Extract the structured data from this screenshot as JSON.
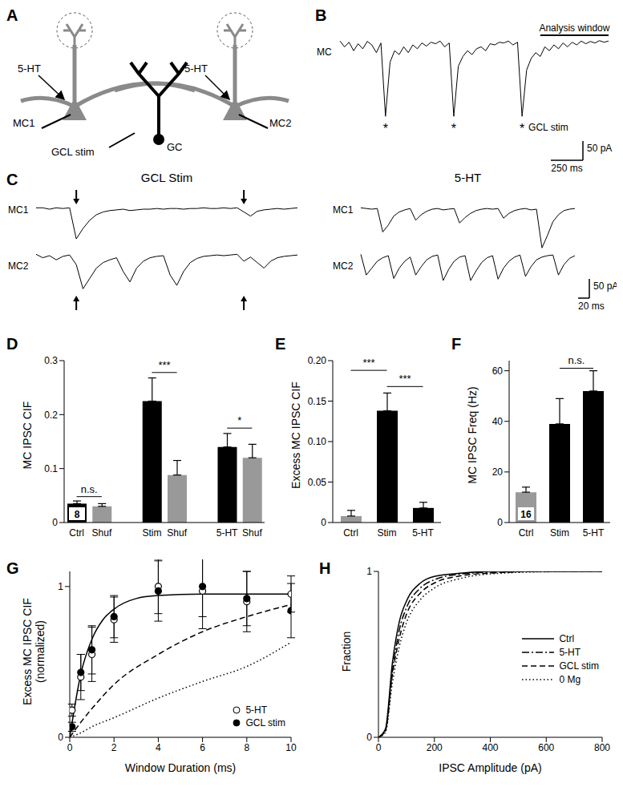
{
  "panels": [
    "A",
    "B",
    "C",
    "D",
    "E",
    "F",
    "G",
    "H"
  ],
  "diagram": {
    "panel": "A",
    "drug": "5-HT",
    "mitral_cells": [
      "MC1",
      "MC2"
    ],
    "stimulus": "GCL stim",
    "granule_cell": "GC"
  },
  "chart_data": [
    {
      "panel": "B",
      "type": "line",
      "label": "MC",
      "values": [
        -5,
        -20,
        -8,
        -30,
        -12,
        -25,
        -6,
        -15,
        -35,
        -10,
        -200,
        -60,
        -30,
        -40,
        -20,
        -35,
        -15,
        -25,
        -10,
        -18,
        -8,
        -12,
        -5,
        -20,
        -10,
        -200,
        -70,
        -45,
        -30,
        -40,
        -25,
        -20,
        -30,
        -12,
        -15,
        -8,
        -10,
        -5,
        -15,
        -8,
        -200,
        -80,
        -50,
        -35,
        -45,
        -20,
        -30,
        -15,
        -25,
        -10,
        -20,
        -8,
        -15,
        -5,
        -12,
        -6,
        -10,
        -4,
        -8,
        -5
      ],
      "ylim": [
        -210,
        10
      ],
      "tick_labels": false,
      "annotations": [
        "Analysis window",
        "*",
        "GCL stim"
      ],
      "scale_bars": [
        "50 pA",
        "250 ms"
      ]
    },
    {
      "panel": "C",
      "type": "line",
      "title": "GCL Stim",
      "ylim": [
        -60,
        5
      ],
      "tick_labels": false,
      "series": [
        {
          "name": "MC1",
          "values": [
            0,
            0,
            -2,
            0,
            -1,
            0,
            -45,
            -30,
            -18,
            -10,
            -6,
            -4,
            -3,
            -2,
            -4,
            -3,
            -2,
            -2,
            -1,
            -2,
            -1,
            -1,
            -2,
            -1,
            -1,
            0,
            -1,
            -1,
            0,
            -1,
            0,
            -6,
            -12,
            -5,
            -3,
            -2,
            -1,
            -2,
            -1,
            0
          ]
        },
        {
          "name": "MC2",
          "values": [
            0,
            -5,
            -2,
            -8,
            -3,
            -1,
            -15,
            -50,
            -35,
            -20,
            -12,
            -8,
            -5,
            -25,
            -40,
            -20,
            -10,
            -5,
            -3,
            -2,
            -30,
            -45,
            -25,
            -12,
            -6,
            -3,
            -2,
            -1,
            -2,
            -1,
            0,
            -10,
            -4,
            -12,
            -20,
            -10,
            -5,
            -3,
            -2,
            -1
          ]
        }
      ]
    },
    {
      "type": "line",
      "title": "5-HT",
      "ylim": [
        -60,
        5
      ],
      "tick_labels": false,
      "scale_bars": [
        "50 pA",
        "20 ms"
      ],
      "series": [
        {
          "name": "MC1",
          "values": [
            0,
            -1,
            -2,
            -1,
            -35,
            -25,
            -12,
            -6,
            -3,
            -1,
            -18,
            -10,
            -5,
            -2,
            -1,
            -3,
            -2,
            -1,
            -22,
            -14,
            -8,
            -4,
            -2,
            -1,
            -2,
            -1,
            -15,
            -8,
            -4,
            -2,
            -1,
            -3,
            -2,
            -58,
            -40,
            -20,
            -10,
            -4,
            -2,
            -1
          ]
        },
        {
          "name": "MC2",
          "values": [
            0,
            -30,
            -20,
            -10,
            -5,
            -2,
            -35,
            -20,
            -10,
            -4,
            -30,
            -18,
            -8,
            -3,
            -1,
            -38,
            -22,
            -10,
            -4,
            -2,
            -38,
            -24,
            -12,
            -5,
            -2,
            -36,
            -20,
            -10,
            -4,
            -1,
            -32,
            -18,
            -8,
            -4,
            -2,
            -1,
            -30,
            -15,
            -6,
            -2
          ]
        }
      ]
    },
    {
      "panel": "D",
      "type": "bar",
      "ylabel": "MC IPSC CIF",
      "categories": [
        "Ctrl",
        "Shuf",
        null,
        "Stim",
        "Shuf",
        null,
        "5-HT",
        "Shuf"
      ],
      "values": [
        0.035,
        0.03,
        null,
        0.225,
        0.088,
        null,
        0.14,
        0.12
      ],
      "errors": [
        0.005,
        0.005,
        null,
        0.043,
        0.027,
        null,
        0.025,
        0.025
      ],
      "colors": [
        "#000000",
        "#999999",
        null,
        "#000000",
        "#999999",
        null,
        "#000000",
        "#999999"
      ],
      "n": [
        8,
        null,
        null,
        null,
        null,
        null,
        null,
        null
      ],
      "ylim": [
        0,
        0.3
      ],
      "yticks": [
        0,
        0.1,
        0.2,
        0.3
      ],
      "annotations": [
        "n.s.",
        "***",
        "*"
      ]
    },
    {
      "panel": "E",
      "type": "bar",
      "ylabel": "Excess MC IPSC CIF",
      "categories": [
        "Ctrl",
        "Stim",
        "5-HT"
      ],
      "values": [
        0.008,
        0.138,
        0.018
      ],
      "errors": [
        0.007,
        0.022,
        0.007
      ],
      "colors": [
        "#999999",
        "#000000",
        "#000000"
      ],
      "ylim": [
        0,
        0.2
      ],
      "yticks": [
        0,
        0.05,
        {
          "value": 0.1,
          "label": "0.10"
        },
        0.15,
        {
          "value": 0.2,
          "label": "0.20"
        }
      ],
      "annotations": [
        "***",
        "***"
      ]
    },
    {
      "panel": "F",
      "type": "bar",
      "ylabel": "MC IPSC Freq (Hz)",
      "categories": [
        "Ctrl",
        "Stim",
        "5-HT"
      ],
      "values": [
        12,
        39,
        52
      ],
      "errors": [
        2,
        10,
        8
      ],
      "colors": [
        "#999999",
        "#000000",
        "#000000"
      ],
      "n": [
        16,
        null,
        null
      ],
      "ylim": [
        0,
        64
      ],
      "yticks": [
        0,
        20,
        40,
        60
      ],
      "annotations": [
        "n.s."
      ]
    },
    {
      "panel": "G",
      "type": "scatter",
      "xlabel": "Window Duration (ms)",
      "ylabel": "Excess MC IPSC CIF\n(normalized)",
      "xlim": [
        0,
        10
      ],
      "xticks": [
        0,
        2,
        4,
        6,
        8,
        10
      ],
      "ylim": [
        0,
        1.1
      ],
      "yticks": [
        0,
        1
      ],
      "legend": "lower right",
      "series": [
        {
          "name": "5-HT",
          "marker": "open_circle",
          "x": [
            0.1,
            0.5,
            1,
            2,
            4,
            6,
            8,
            10
          ],
          "values": [
            0.18,
            0.4,
            0.55,
            0.78,
            1.0,
            0.97,
            0.9,
            0.95
          ],
          "errors": [
            0.04,
            0.15,
            0.18,
            0.15,
            0.18,
            0.25,
            0.2,
            0.12
          ]
        },
        {
          "name": "GCL stim",
          "marker": "filled_circle",
          "x": [
            0.1,
            0.5,
            1,
            2,
            4,
            6,
            8,
            10
          ],
          "values": [
            0.07,
            0.43,
            0.58,
            0.8,
            0.97,
            1.0,
            0.92,
            0.84
          ],
          "errors": [
            0.03,
            0.12,
            0.16,
            0.14,
            0.2,
            0.2,
            0.18,
            0.18
          ]
        },
        {
          "type": "line",
          "line_style": "solid",
          "x": [
            0,
            0.5,
            1,
            1.5,
            2,
            3,
            4,
            6,
            8,
            10
          ],
          "values": [
            0,
            0.42,
            0.65,
            0.78,
            0.85,
            0.92,
            0.94,
            0.95,
            0.95,
            0.95
          ]
        },
        {
          "type": "line",
          "line_style": "dashed",
          "x": [
            0,
            0.5,
            1,
            2,
            4,
            6,
            8,
            10
          ],
          "values": [
            0,
            0.1,
            0.19,
            0.35,
            0.55,
            0.7,
            0.8,
            0.88
          ]
        },
        {
          "type": "line",
          "line_style": "dotted",
          "x": [
            0,
            0.5,
            1,
            2,
            4,
            6,
            8,
            10
          ],
          "values": [
            0,
            0.03,
            0.07,
            0.13,
            0.26,
            0.37,
            0.47,
            0.63
          ]
        }
      ]
    },
    {
      "panel": "H",
      "type": "line",
      "xlabel": "IPSC Amplitude (pA)",
      "ylabel": "Fraction",
      "x": [
        0,
        25,
        50,
        75,
        100,
        150,
        200,
        300,
        400,
        600,
        800
      ],
      "xlim": [
        0,
        800
      ],
      "xticks": [
        0,
        200,
        400,
        600,
        800
      ],
      "ylim": [
        0,
        1
      ],
      "yticks": [
        0,
        1
      ],
      "legend": "right",
      "series": [
        {
          "name": "Ctrl",
          "line_style": "solid",
          "values": [
            0,
            0.05,
            0.45,
            0.7,
            0.82,
            0.93,
            0.97,
            0.99,
            1,
            1,
            1
          ]
        },
        {
          "name": "5-HT",
          "line_style": "dashdot",
          "values": [
            0,
            0.04,
            0.4,
            0.65,
            0.78,
            0.9,
            0.95,
            0.985,
            0.995,
            1,
            1
          ]
        },
        {
          "name": "GCL stim",
          "line_style": "dashed",
          "values": [
            0,
            0.04,
            0.38,
            0.6,
            0.74,
            0.87,
            0.93,
            0.975,
            0.99,
            1,
            1
          ]
        },
        {
          "name": "0 Mg",
          "line_style": "dotted",
          "values": [
            0,
            0.03,
            0.33,
            0.55,
            0.69,
            0.83,
            0.9,
            0.96,
            0.985,
            0.998,
            1
          ]
        }
      ]
    }
  ]
}
